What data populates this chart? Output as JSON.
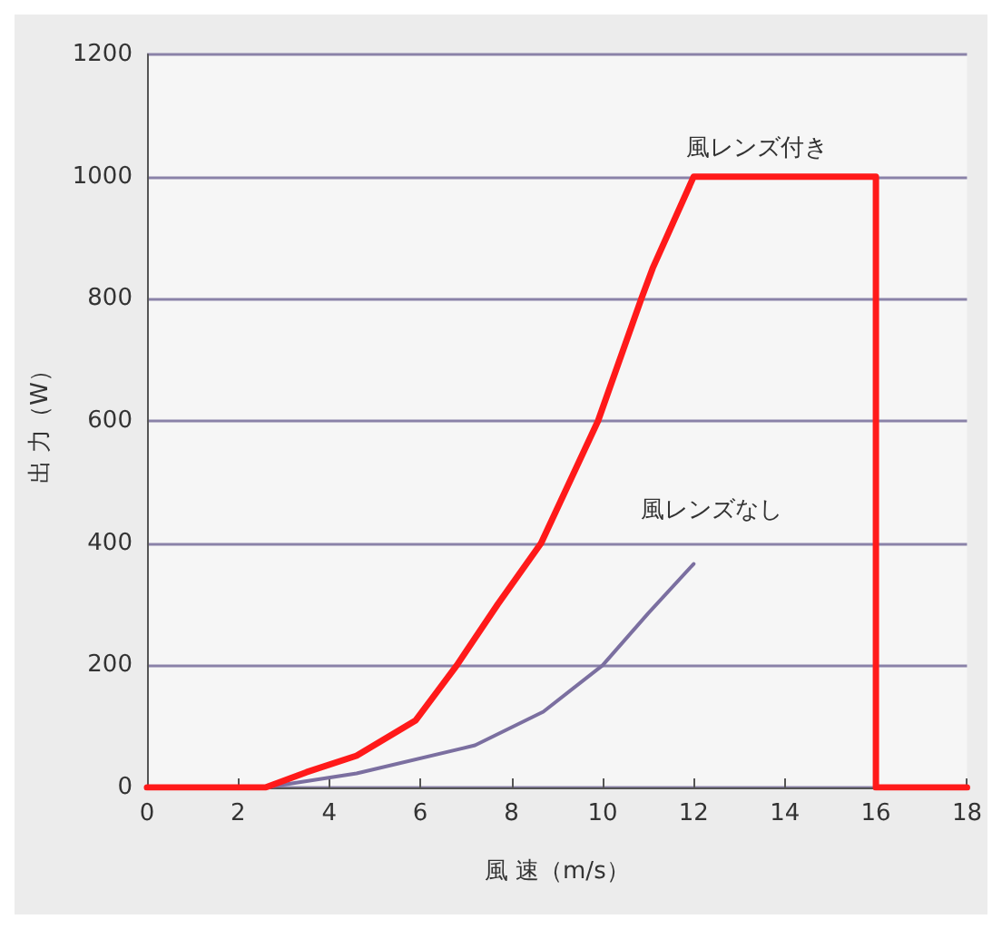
{
  "chart_data": {
    "type": "line",
    "xlabel": "風 速（m/s）",
    "ylabel": "出 力（W）",
    "xlim": [
      0,
      18
    ],
    "xticks": [
      0,
      2,
      4,
      6,
      8,
      10,
      12,
      14,
      16,
      18
    ],
    "ylim": [
      0,
      1200
    ],
    "yticks": [
      0,
      200,
      400,
      600,
      800,
      1000,
      1200
    ],
    "grid": "y",
    "legend": false,
    "marker": "none",
    "line_style": "solid",
    "series": [
      {
        "name": "風レンズ付き",
        "color": "#ff1a1a",
        "x": [
          0,
          2.6,
          3.5,
          4.6,
          5.9,
          6.8,
          7.7,
          8.65,
          9.9,
          10.85,
          11.1,
          12,
          16,
          16,
          18
        ],
        "values": [
          0,
          0,
          25,
          52,
          110,
          200,
          300,
          400,
          600,
          800,
          850,
          1000,
          1000,
          0,
          0
        ]
      },
      {
        "name": "風レンズなし",
        "color": "#7b6fa0",
        "x": [
          2.6,
          4.6,
          7.2,
          8.7,
          10,
          11,
          12
        ],
        "values": [
          0,
          23,
          69,
          124,
          200,
          285,
          366
        ]
      }
    ]
  }
}
